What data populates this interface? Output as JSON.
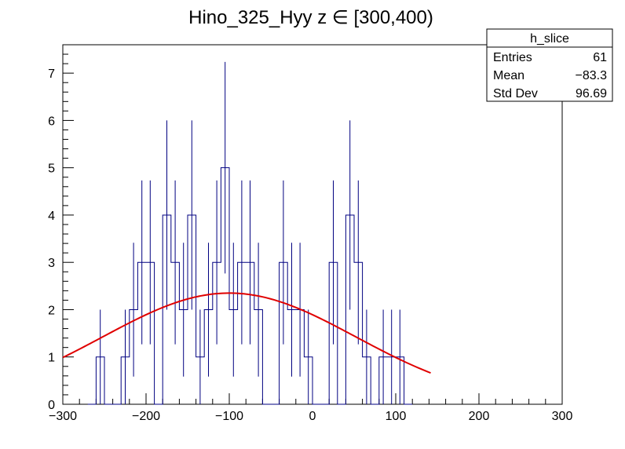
{
  "chart_data": {
    "type": "histogram",
    "title": "Hino_325_Hyy z  ∈ [300,400)",
    "xlabel": "",
    "ylabel": "",
    "xlim": [
      -300,
      300
    ],
    "ylim": [
      0,
      7.6
    ],
    "x_ticks": [
      -300,
      -200,
      -100,
      0,
      100,
      200,
      300
    ],
    "x_tick_labels": [
      "−300",
      "−200",
      "−100",
      "0",
      "100",
      "200",
      "300"
    ],
    "y_ticks": [
      0,
      1,
      2,
      3,
      4,
      5,
      6,
      7
    ],
    "y_tick_labels": [
      "0",
      "1",
      "2",
      "3",
      "4",
      "5",
      "6",
      "7"
    ],
    "bin_width": 10,
    "bins_x_low": [
      -270,
      -260,
      -250,
      -240,
      -230,
      -220,
      -210,
      -200,
      -190,
      -180,
      -170,
      -160,
      -150,
      -140,
      -130,
      -120,
      -110,
      -100,
      -90,
      -80,
      -70,
      -60,
      -50,
      -40,
      -30,
      -20,
      -10,
      0,
      10,
      20,
      30,
      40,
      50,
      60,
      70,
      80,
      90,
      100,
      110
    ],
    "bin_counts": [
      0,
      1,
      0,
      0,
      1,
      2,
      3,
      3,
      0,
      4,
      3,
      2,
      4,
      1,
      2,
      3,
      5,
      2,
      3,
      3,
      2,
      0,
      0,
      3,
      2,
      2,
      1,
      0,
      0,
      3,
      0,
      4,
      3,
      1,
      0,
      1,
      1,
      1,
      0
    ],
    "series": [
      {
        "name": "h_slice",
        "style": "histogram-with-errors",
        "color": "#000080"
      },
      {
        "name": "",
        "style": "fit-curve",
        "color": "#e00000",
        "function": "gaussian",
        "amplitude": 2.35,
        "mean": -100,
        "sigma": 152,
        "x_range": [
          -300,
          142
        ]
      }
    ],
    "grid": false,
    "legend": "top-right"
  },
  "stats_box": {
    "title": "h_slice",
    "rows": [
      {
        "label": "Entries",
        "value": "61"
      },
      {
        "label": "Mean",
        "value": "−83.3"
      },
      {
        "label": "Std Dev",
        "value": "96.69"
      }
    ]
  },
  "colors": {
    "histogram": "#000080",
    "fit": "#e00000",
    "frame": "#000000"
  }
}
